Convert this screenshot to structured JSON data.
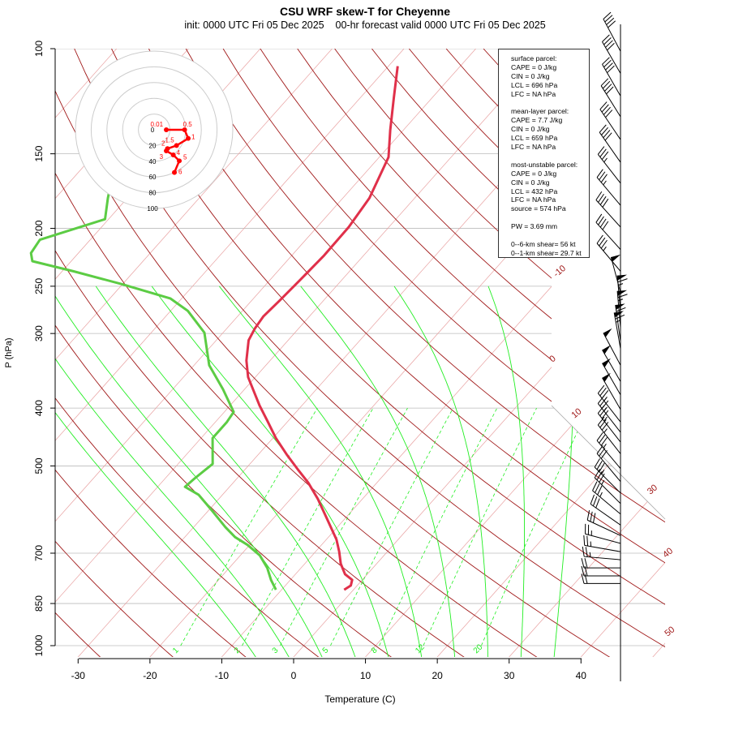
{
  "header": {
    "title": "CSU WRF skew-T for Cheyenne",
    "subtitle": "init: 0000 UTC Fri 05 Dec 2025    00-hr forecast valid 0000 UTC Fri 05 Dec 2025"
  },
  "stats": {
    "surface_header": "surface parcel:",
    "surface": [
      "CAPE = 0 J/kg",
      "CIN = 0 J/kg",
      "LCL = 696 hPa",
      "LFC = NA hPa"
    ],
    "mean_layer_header": "mean-layer parcel:",
    "mean_layer": [
      "CAPE = 7.7 J/kg",
      "CIN = 0 J/kg",
      "LCL = 659 hPa",
      "LFC = NA hPa"
    ],
    "most_unstable_header": "most-unstable parcel:",
    "most_unstable": [
      "CAPE = 0 J/kg",
      "CIN = 0 J/kg",
      "LCL = 432 hPa",
      "LFC = NA hPa",
      "source = 574 hPa"
    ],
    "pw": "PW =  3.69 mm",
    "shear_6km": "0--6-km shear= 56 kt",
    "shear_1km": "0--1-km shear= 29.7 kt"
  },
  "chart_data": {
    "type": "line",
    "title": "CSU WRF skew-T for Cheyenne",
    "xlabel": "Temperature (C)",
    "ylabel": "P (hPa)",
    "xlim": [
      -33,
      45
    ],
    "ylim": [
      1050,
      100
    ],
    "x_ticks": [
      "-30",
      "-20",
      "-10",
      "0",
      "10",
      "20",
      "30",
      "40"
    ],
    "x_tick_values": [
      -30,
      -20,
      -10,
      0,
      10,
      20,
      30,
      40
    ],
    "y_ticks": [
      "100",
      "150",
      "200",
      "250",
      "300",
      "400",
      "500",
      "700",
      "850",
      "1000"
    ],
    "y_tick_values": [
      100,
      150,
      200,
      250,
      300,
      400,
      500,
      700,
      850,
      1000
    ],
    "isotherm_labels": [
      "-10",
      "0",
      "10",
      "30",
      "40",
      "50"
    ],
    "isotherm_label_values": [
      -10,
      0,
      10,
      30,
      40,
      50
    ],
    "mixing_ratio_labels": [
      "1",
      "2",
      "3",
      "5",
      "8",
      "12",
      "20"
    ],
    "mixing_ratio_values": [
      1,
      2,
      3,
      5,
      8,
      12,
      20
    ],
    "colors": {
      "temperature": "#e0304a",
      "dewpoint": "#5ccc44",
      "isotherm": "#a01818",
      "isotherm_light": "#e8a0a0",
      "moist": "#22ee22",
      "hodo": "#ff0000"
    },
    "series": [
      {
        "name": "temperature",
        "p": [
          806,
          793,
          776,
          759,
          729,
          696,
          664,
          623,
          568,
          533,
          509,
          478,
          449,
          422,
          396,
          355,
          333,
          308,
          294,
          281,
          264,
          244,
          222,
          199,
          178,
          152,
          137,
          121,
          107
        ],
        "T": [
          -1.3,
          -0.9,
          -1.4,
          -3.1,
          -5.0,
          -6.7,
          -8.6,
          -11.7,
          -16.2,
          -19.6,
          -22.4,
          -26.1,
          -29.6,
          -32.7,
          -35.9,
          -41.0,
          -43.3,
          -45.5,
          -46.1,
          -46.4,
          -46.1,
          -45.8,
          -45.5,
          -45.6,
          -46.3,
          -48.7,
          -51.8,
          -55.3,
          -58.7
        ]
      },
      {
        "name": "dewpoint",
        "p": [
          806,
          776,
          741,
          706,
          678,
          658,
          633,
          595,
          559,
          542,
          525,
          496,
          449,
          422,
          406,
          372,
          339,
          299,
          275,
          262,
          248,
          236,
          227,
          220,
          209,
          193,
          178,
          173
        ],
        "T": [
          -10.8,
          -12.7,
          -14.7,
          -17.3,
          -20.3,
          -23.0,
          -25.6,
          -29.4,
          -33.3,
          -36.2,
          -35.9,
          -35.2,
          -38.4,
          -38.4,
          -38.7,
          -43.0,
          -47.9,
          -52.6,
          -57.6,
          -61.6,
          -70.1,
          -78.4,
          -85.4,
          -86.6,
          -87.0,
          -80.5,
          -82.7,
          -83.4
        ]
      }
    ],
    "hodograph": {
      "ring_labels": [
        "0",
        "20",
        "40",
        "60",
        "80",
        "100"
      ],
      "ring_values": [
        0,
        20,
        40,
        60,
        80,
        100
      ],
      "points": [
        {
          "label": "0.01",
          "u": 15.5,
          "v": 0
        },
        {
          "label": "0.5",
          "u": 38.8,
          "v": 0
        },
        {
          "label": "1",
          "u": 43.3,
          "v": -11
        },
        {
          "label": "1.5",
          "u": 28.5,
          "v": -20
        },
        {
          "label": "2",
          "u": 17,
          "v": -24
        },
        {
          "label": "3",
          "u": 15.5,
          "v": -26.8
        },
        {
          "label": "4",
          "u": 24.4,
          "v": -32
        },
        {
          "label": "5",
          "u": 32,
          "v": -39.5
        },
        {
          "label": "6",
          "u": 25.8,
          "v": -54.3
        }
      ]
    },
    "wind_barbs": [
      {
        "p": 101,
        "dir": 332,
        "spd": 40
      },
      {
        "p": 110,
        "dir": 330,
        "spd": 40
      },
      {
        "p": 120,
        "dir": 330,
        "spd": 40
      },
      {
        "p": 130,
        "dir": 328,
        "spd": 40
      },
      {
        "p": 142,
        "dir": 326,
        "spd": 40
      },
      {
        "p": 155,
        "dir": 325,
        "spd": 40
      },
      {
        "p": 168,
        "dir": 322,
        "spd": 35
      },
      {
        "p": 183,
        "dir": 320,
        "spd": 35
      },
      {
        "p": 199,
        "dir": 318,
        "spd": 40
      },
      {
        "p": 217,
        "dir": 318,
        "spd": 40
      },
      {
        "p": 236,
        "dir": 320,
        "spd": 35
      },
      {
        "p": 256,
        "dir": 345,
        "spd": 50
      },
      {
        "p": 276,
        "dir": 355,
        "spd": 65
      },
      {
        "p": 293,
        "dir": 355,
        "spd": 65
      },
      {
        "p": 309,
        "dir": 352,
        "spd": 65
      },
      {
        "p": 318,
        "dir": 350,
        "spd": 65
      },
      {
        "p": 339,
        "dir": 332,
        "spd": 50
      },
      {
        "p": 361,
        "dir": 330,
        "spd": 50
      },
      {
        "p": 380,
        "dir": 330,
        "spd": 50
      },
      {
        "p": 402,
        "dir": 330,
        "spd": 50
      },
      {
        "p": 422,
        "dir": 322,
        "spd": 35
      },
      {
        "p": 439,
        "dir": 322,
        "spd": 35
      },
      {
        "p": 456,
        "dir": 322,
        "spd": 35
      },
      {
        "p": 477,
        "dir": 322,
        "spd": 35
      },
      {
        "p": 505,
        "dir": 320,
        "spd": 35
      },
      {
        "p": 531,
        "dir": 320,
        "spd": 30
      },
      {
        "p": 555,
        "dir": 315,
        "spd": 35
      },
      {
        "p": 578,
        "dir": 315,
        "spd": 35
      },
      {
        "p": 602,
        "dir": 310,
        "spd": 35
      },
      {
        "p": 628,
        "dir": 305,
        "spd": 30
      },
      {
        "p": 654,
        "dir": 295,
        "spd": 30
      },
      {
        "p": 674,
        "dir": 285,
        "spd": 25
      },
      {
        "p": 696,
        "dir": 280,
        "spd": 25
      },
      {
        "p": 718,
        "dir": 275,
        "spd": 25
      },
      {
        "p": 741,
        "dir": 270,
        "spd": 20
      },
      {
        "p": 764,
        "dir": 270,
        "spd": 20
      },
      {
        "p": 787,
        "dir": 270,
        "spd": 20
      }
    ]
  }
}
